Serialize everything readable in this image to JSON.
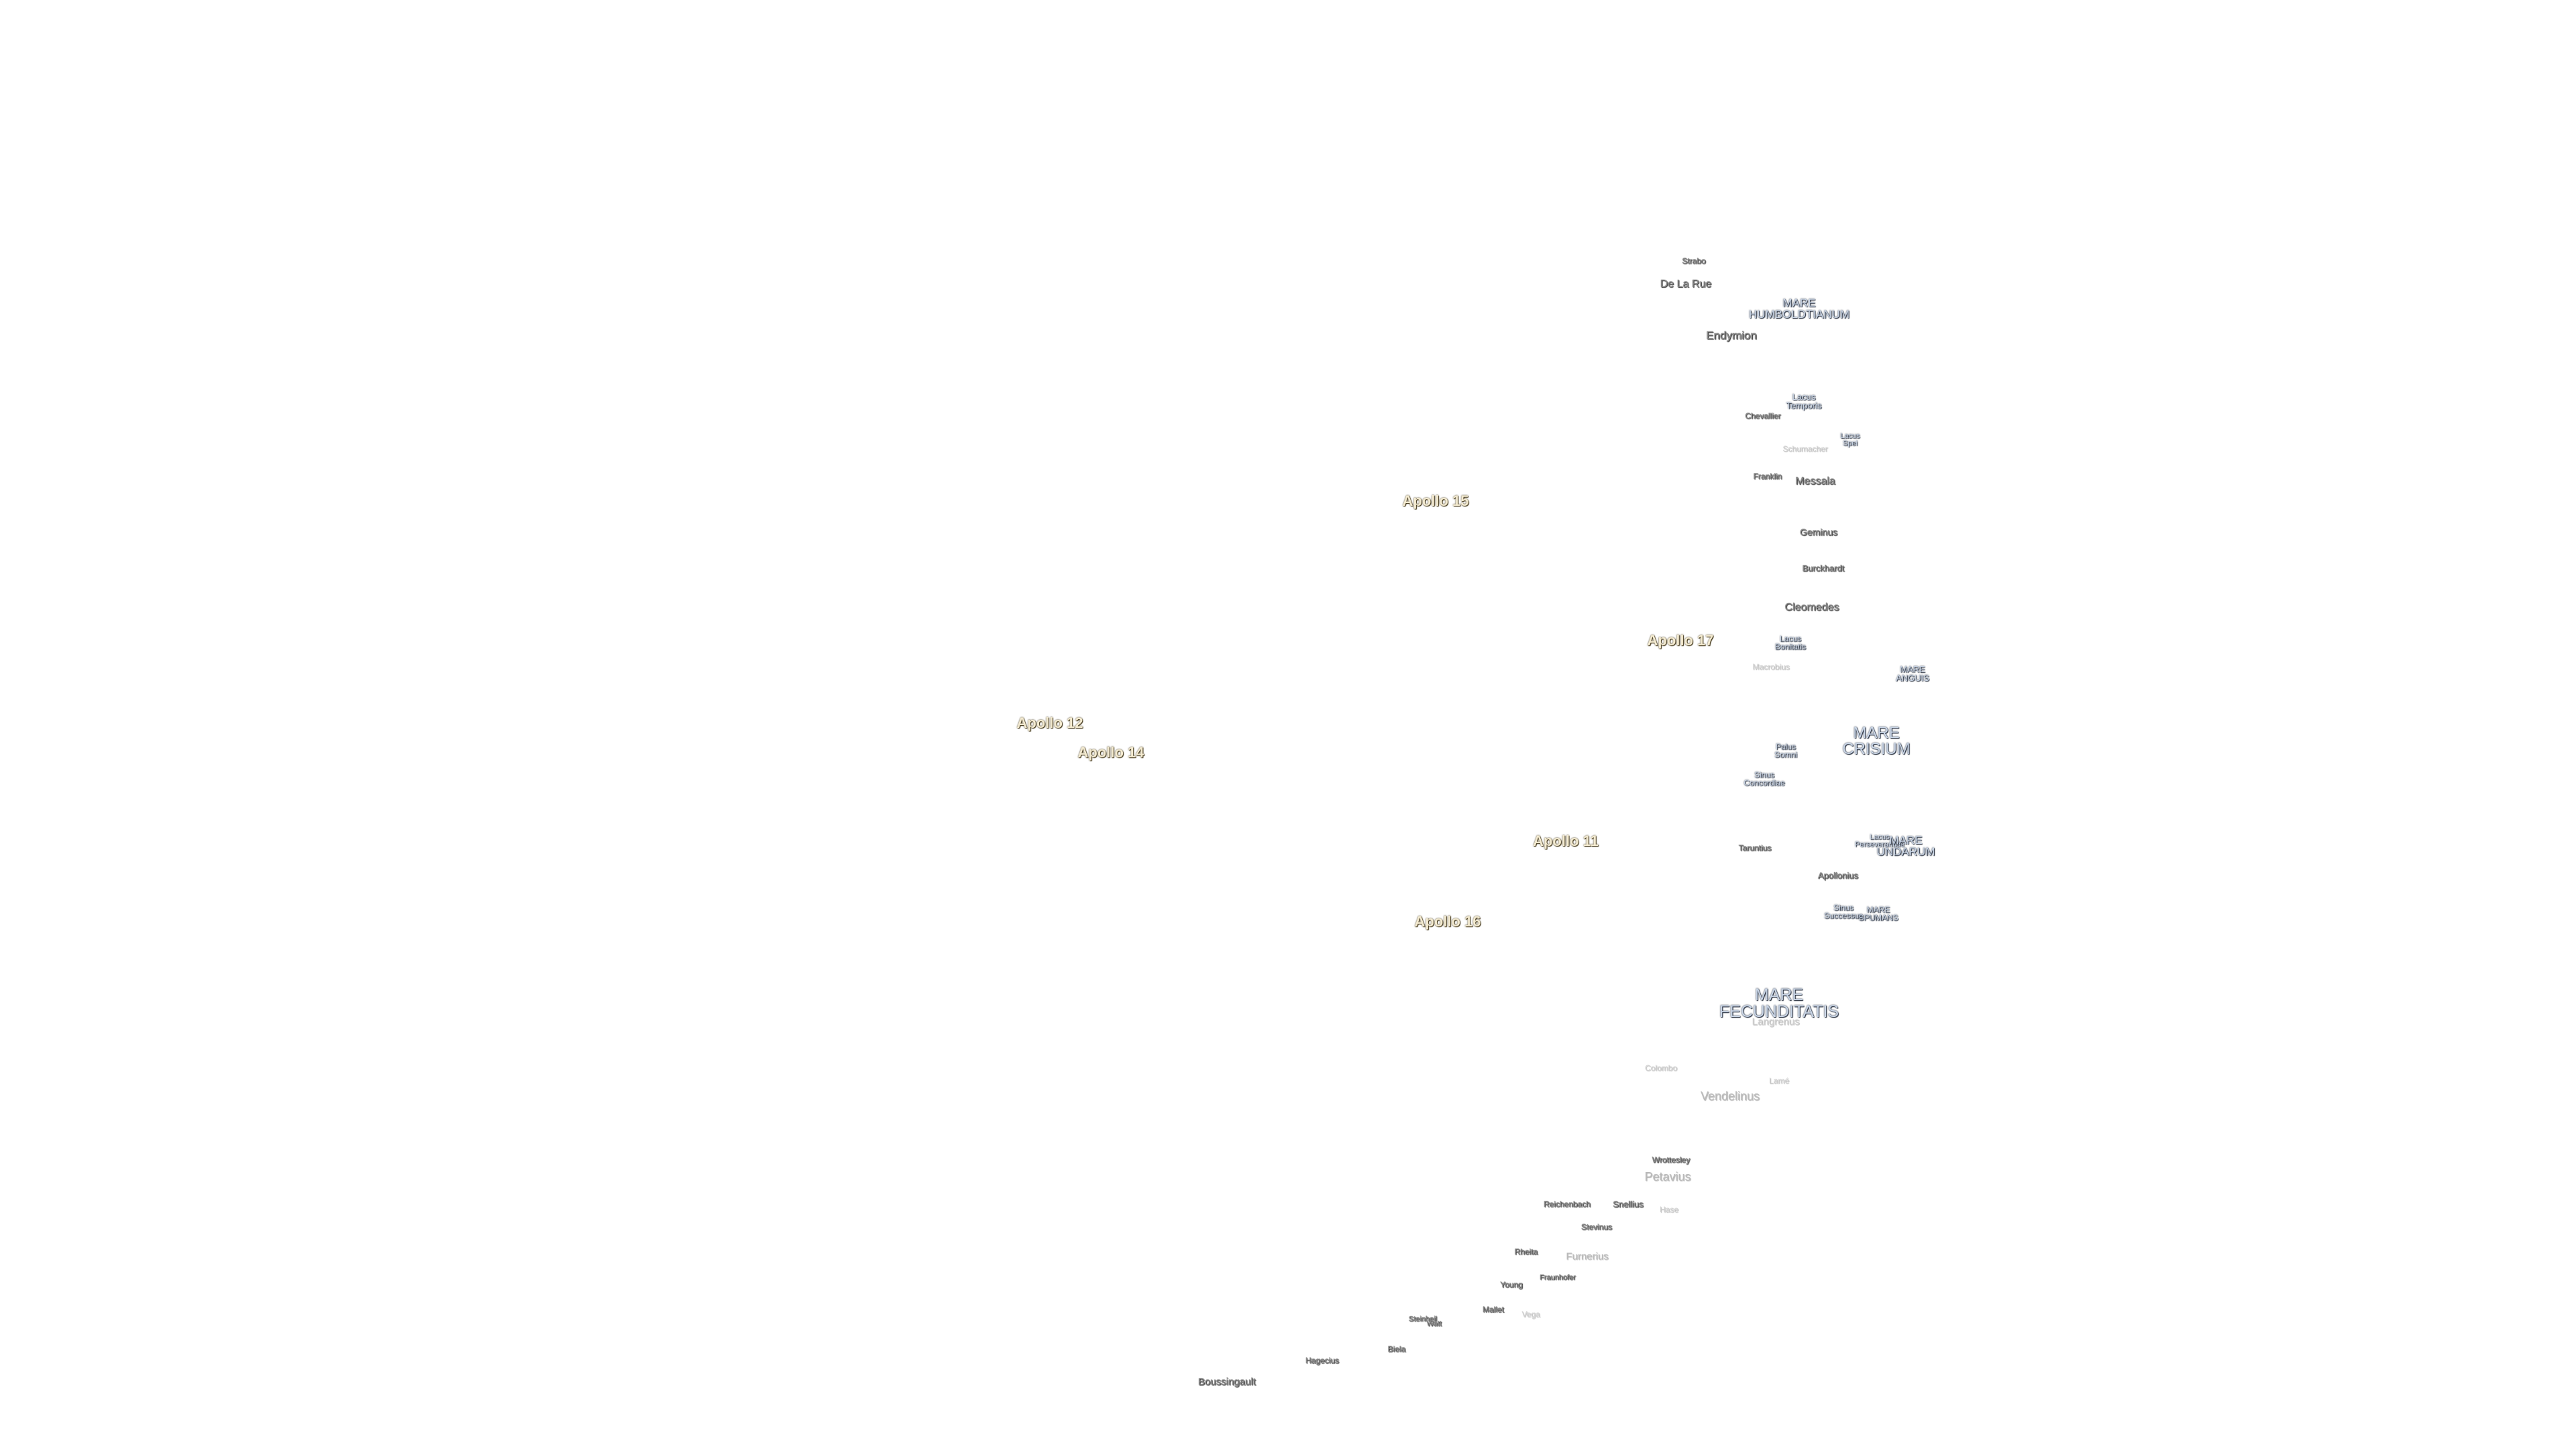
{
  "labels": [
    "Strabo",
    "De La Rue",
    "MARE\nHUMBOLDTIANUM",
    "Endymion",
    "Lacus\nTemporis",
    "Chevallier",
    "Lacus\nSpei",
    "Schumacher",
    "Franklin",
    "Messala",
    "Apollo 15",
    "Geminus",
    "Burckhardt",
    "Cleomedes",
    "Apollo 17",
    "Lacus\nBonitatis",
    "Macrobius",
    "MARE\nANGUIS",
    "Apollo 12",
    "MARE\nCRISIUM",
    "Apollo 14",
    "Palus\nSomni",
    "Sinus\nConcordiae",
    "Apollo 11",
    "Taruntius",
    "Lacus\nPerseverantiae",
    "MARE\nUNDARUM",
    "Apollonius",
    "Sinus\nSuccessus",
    "MARE\nSPUMANS",
    "Apollo 16",
    "MARE\nFECUNDITATIS",
    "Langrenus",
    "Colombo",
    "Lamé",
    "Vendelinus",
    "Wrottesley",
    "Petavius",
    "Reichenbach",
    "Snellius",
    "Hase",
    "Stevinus",
    "Rheita",
    "Furnerius",
    "Fraunhofer",
    "Young",
    "Mallet",
    "Vega",
    "Steinheil",
    "Watt",
    "Biela",
    "Hagecius",
    "Boussingault"
  ]
}
